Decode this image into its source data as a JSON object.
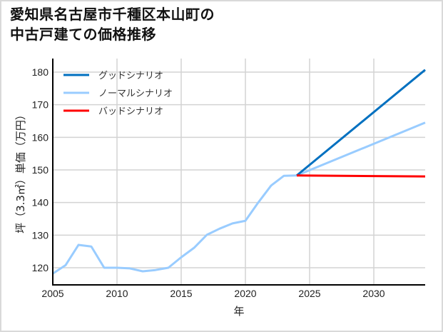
{
  "title_lines": [
    "愛知県名古屋市千種区本山町の",
    "中古戸建ての価格推移"
  ],
  "chart_data": {
    "type": "line",
    "title": "愛知県名古屋市千種区本山町の中古戸建ての価格推移",
    "xlabel": "年",
    "ylabel": "坪（3.3㎡）単価（万円）",
    "xlim": [
      2005,
      2034
    ],
    "ylim": [
      114.5,
      184
    ],
    "xticks": [
      2005,
      2010,
      2015,
      2020,
      2025,
      2030
    ],
    "yticks": [
      120,
      130,
      140,
      150,
      160,
      170,
      180
    ],
    "grid": true,
    "legend_position": "upper left",
    "series": [
      {
        "name": "グッドシナリオ",
        "color": "#0070c0",
        "x": [
          2024,
          2034
        ],
        "values": [
          148.3,
          180.7
        ]
      },
      {
        "name": "ノーマルシナリオ",
        "color": "#99ccff",
        "x": [
          2005,
          2006,
          2007,
          2008,
          2009,
          2010,
          2011,
          2012,
          2013,
          2014,
          2015,
          2016,
          2017,
          2018,
          2019,
          2020,
          2021,
          2022,
          2023,
          2024,
          2034
        ],
        "values": [
          118.2,
          120.8,
          127.0,
          126.5,
          120.0,
          120.0,
          119.8,
          118.9,
          119.3,
          120.0,
          123.2,
          126.1,
          130.1,
          132.0,
          133.6,
          134.4,
          140.0,
          145.2,
          148.2,
          148.3,
          164.5
        ]
      },
      {
        "name": "バッドシナリオ",
        "color": "#ff0000",
        "x": [
          2024,
          2034
        ],
        "values": [
          148.3,
          148.0
        ]
      }
    ]
  }
}
